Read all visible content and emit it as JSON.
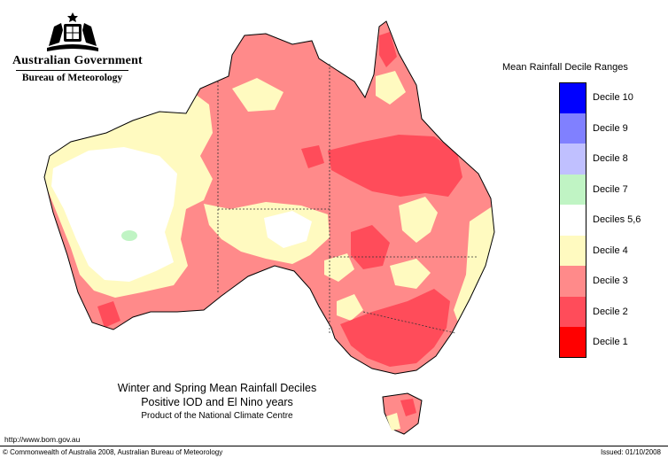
{
  "header": {
    "gov_name": "Australian Government",
    "bureau_name": "Bureau of Meteorology"
  },
  "legend": {
    "title": "Mean Rainfall Decile Ranges",
    "items": [
      {
        "label": "Decile 10",
        "color": "#0000ff"
      },
      {
        "label": "Decile 9",
        "color": "#8080ff"
      },
      {
        "label": "Decile 8",
        "color": "#c0c0ff"
      },
      {
        "label": "Decile 7",
        "color": "#c0f4c4"
      },
      {
        "label": "Deciles 5,6",
        "color": "#ffffff"
      },
      {
        "label": "Decile 4",
        "color": "#fffac0"
      },
      {
        "label": "Decile 3",
        "color": "#ff8a8a"
      },
      {
        "label": "Decile 2",
        "color": "#ff4c5a"
      },
      {
        "label": "Decile 1",
        "color": "#ff0000"
      }
    ]
  },
  "map": {
    "title": "Winter and Spring Mean Rainfall Deciles",
    "subtitle": "Positive IOD and El Nino years",
    "product": "Product of the National Climate Centre"
  },
  "footer": {
    "url": "http://www.bom.gov.au",
    "copyright": "© Commonwealth of Australia 2008, Australian Bureau of Meteorology",
    "issued": "Issued: 01/10/2008"
  }
}
